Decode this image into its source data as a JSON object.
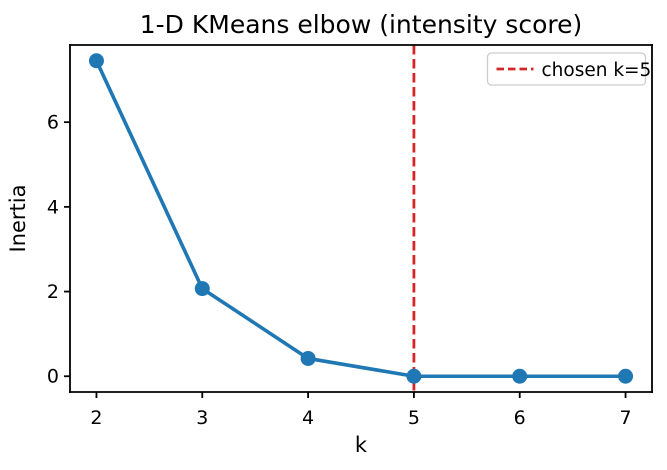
{
  "figure": {
    "background": "#ffffff"
  },
  "chart_data": {
    "type": "line",
    "title": "1-D KMeans elbow (intensity score)",
    "xlabel": "k",
    "ylabel": "Inertia",
    "x": [
      2,
      3,
      4,
      5,
      6,
      7
    ],
    "series": [
      {
        "name": "inertia",
        "values": [
          7.45,
          2.07,
          0.42,
          0.0,
          0.0,
          0.0
        ],
        "color": "#1f77b4",
        "marker": "circle",
        "line_style": "solid"
      }
    ],
    "x_tick_labels": [
      "2",
      "3",
      "4",
      "5",
      "6",
      "7"
    ],
    "x_tick_values": [
      2,
      3,
      4,
      5,
      6,
      7
    ],
    "y_tick_labels": [
      "0",
      "2",
      "4",
      "6"
    ],
    "y_tick_values": [
      0,
      2,
      4,
      6
    ],
    "xlim": [
      1.75,
      7.25
    ],
    "ylim": [
      -0.372,
      7.822
    ],
    "grid": false,
    "vline": {
      "x": 5,
      "color": "#d62728",
      "style": "dashed",
      "label": "chosen k=5"
    },
    "legend": {
      "position": "upper right",
      "entries": [
        {
          "label": "chosen k=5",
          "color": "#d62728",
          "style": "dashed"
        }
      ]
    },
    "colors": {
      "axes": "#000000",
      "text": "#000000",
      "legend_border": "#cccccc",
      "legend_background": "#ffffff"
    }
  }
}
